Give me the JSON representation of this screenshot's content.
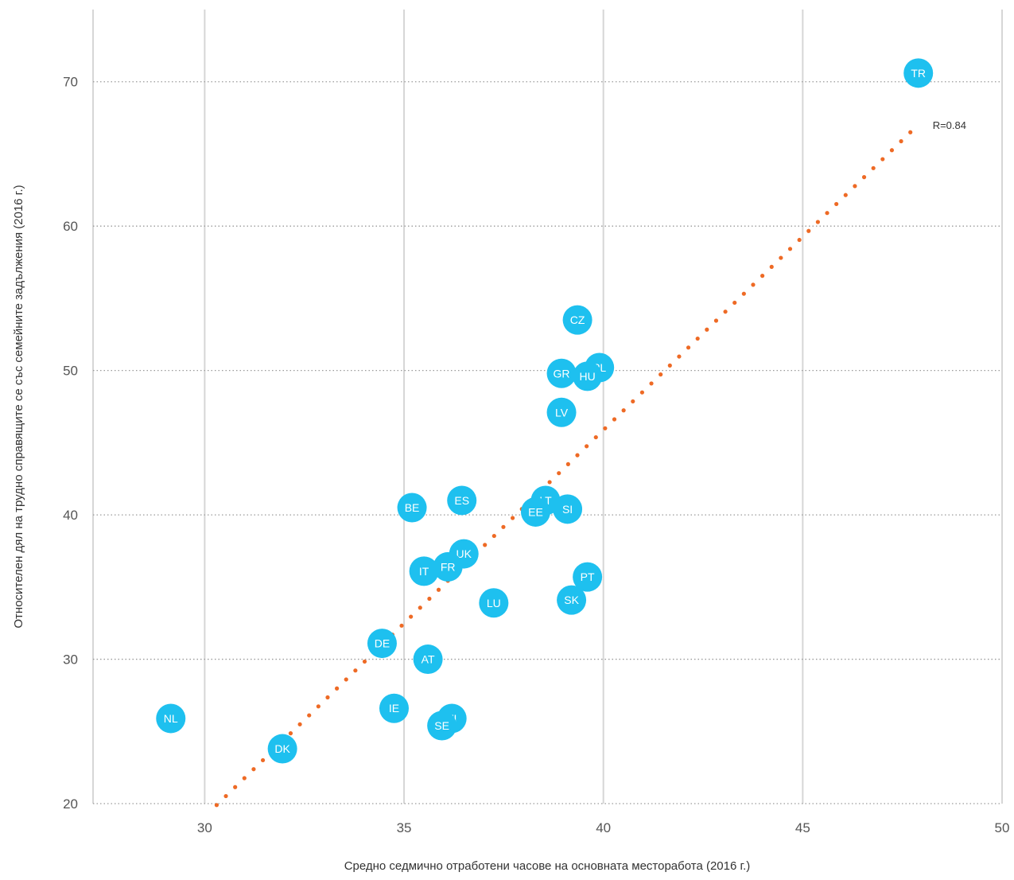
{
  "chart_data": {
    "type": "scatter",
    "xlabel": "Средно седмично отработени часове на основната месторабота (2016 г.)",
    "ylabel": "Относителен дял на трудно справящите се със семейните задължения (2016 г.)",
    "xlim": [
      27.2,
      50
    ],
    "ylim": [
      20,
      75
    ],
    "x_ticks": [
      30,
      35,
      40,
      45,
      50
    ],
    "y_ticks": [
      20,
      30,
      40,
      50,
      60,
      70
    ],
    "vertical_grid": true,
    "horizontal_grid": "dotted",
    "point_color": "#1ec0ef",
    "trend_color": "#ee6a25",
    "points": [
      {
        "label": "TR",
        "x": 47.9,
        "y": 70.6
      },
      {
        "label": "CZ",
        "x": 39.35,
        "y": 53.5
      },
      {
        "label": "PL",
        "x": 39.9,
        "y": 50.2
      },
      {
        "label": "HU",
        "x": 39.6,
        "y": 49.6
      },
      {
        "label": "GR",
        "x": 38.95,
        "y": 49.8
      },
      {
        "label": "LV",
        "x": 38.95,
        "y": 47.1
      },
      {
        "label": "ES",
        "x": 36.45,
        "y": 41.0
      },
      {
        "label": "BE",
        "x": 35.2,
        "y": 40.5
      },
      {
        "label": "LT",
        "x": 38.55,
        "y": 41.0
      },
      {
        "label": "SI",
        "x": 39.1,
        "y": 40.4
      },
      {
        "label": "EE",
        "x": 38.3,
        "y": 40.2
      },
      {
        "label": "UK",
        "x": 36.5,
        "y": 37.3
      },
      {
        "label": "FR",
        "x": 36.1,
        "y": 36.4
      },
      {
        "label": "IT",
        "x": 35.5,
        "y": 36.1
      },
      {
        "label": "PT",
        "x": 39.6,
        "y": 35.7
      },
      {
        "label": "SK",
        "x": 39.2,
        "y": 34.1
      },
      {
        "label": "LU",
        "x": 37.25,
        "y": 33.9
      },
      {
        "label": "DE",
        "x": 34.45,
        "y": 31.1
      },
      {
        "label": "AT",
        "x": 35.6,
        "y": 30.0
      },
      {
        "label": "IE",
        "x": 34.75,
        "y": 26.6
      },
      {
        "label": "FI",
        "x": 36.2,
        "y": 25.9
      },
      {
        "label": "SE",
        "x": 35.95,
        "y": 25.4
      },
      {
        "label": "NL",
        "x": 29.15,
        "y": 25.9
      },
      {
        "label": "DK",
        "x": 31.95,
        "y": 23.8
      }
    ],
    "trendline": {
      "x": [
        30.3,
        47.7
      ],
      "y": [
        19.9,
        66.5
      ],
      "label": "R=0.84"
    }
  }
}
